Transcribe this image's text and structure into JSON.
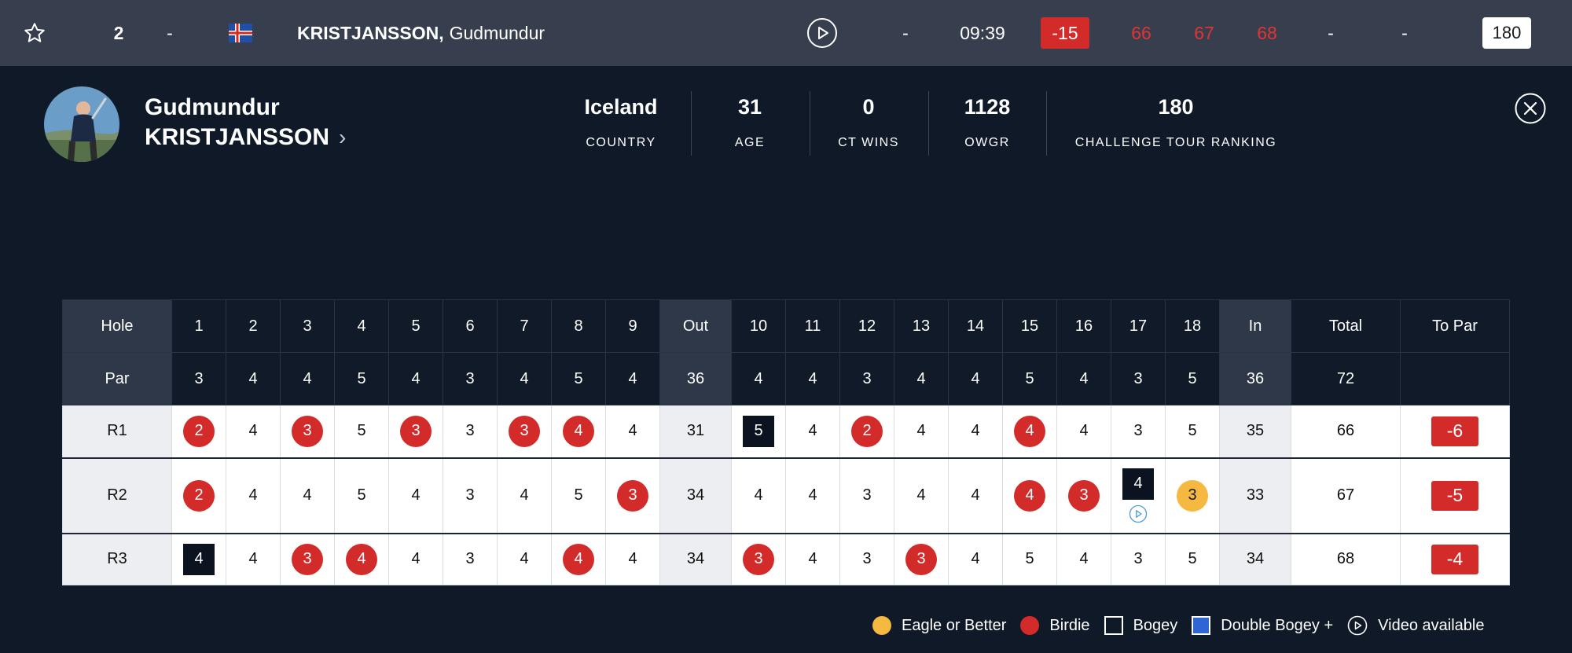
{
  "topbar": {
    "position": "2",
    "position_move": "-",
    "flag_icon": "iceland-flag-icon",
    "player_last": "KRISTJANSSON,",
    "player_first": "Gudmundur",
    "thru": "-",
    "tee_time": "09:39",
    "to_par": "-15",
    "rounds": [
      "66",
      "67",
      "68"
    ],
    "round4": "-",
    "total": "-",
    "ranking": "180",
    "colors": {
      "bar": "#373f4e",
      "to_par_badge": "#d32a2a",
      "round_scores": "#e03535"
    }
  },
  "profile": {
    "first_name": "Gudmundur",
    "last_name": "KRISTJANSSON",
    "stats": [
      {
        "value": "Iceland",
        "label": "COUNTRY"
      },
      {
        "value": "31",
        "label": "AGE"
      },
      {
        "value": "0",
        "label": "CT WINS"
      },
      {
        "value": "1128",
        "label": "OWGR"
      },
      {
        "value": "180",
        "label": "CHALLENGE TOUR RANKING"
      }
    ]
  },
  "scorecard": {
    "headers": [
      "Hole",
      "1",
      "2",
      "3",
      "4",
      "5",
      "6",
      "7",
      "8",
      "9",
      "Out",
      "10",
      "11",
      "12",
      "13",
      "14",
      "15",
      "16",
      "17",
      "18",
      "In",
      "Total",
      "To Par"
    ],
    "par": [
      "Par",
      "3",
      "4",
      "4",
      "5",
      "4",
      "3",
      "4",
      "5",
      "4",
      "36",
      "4",
      "4",
      "3",
      "4",
      "4",
      "5",
      "4",
      "3",
      "5",
      "36",
      "72",
      ""
    ],
    "rounds": [
      {
        "label": "R1",
        "scores": [
          "2",
          "4",
          "3",
          "5",
          "3",
          "3",
          "3",
          "4",
          "4",
          "31",
          "5",
          "4",
          "2",
          "4",
          "4",
          "4",
          "4",
          "3",
          "5",
          "35",
          "66"
        ],
        "types": [
          "birdie",
          "",
          "birdie",
          "",
          "birdie",
          "",
          "birdie",
          "birdie",
          "",
          "",
          "bogey",
          "",
          "birdie",
          "",
          "",
          "birdie",
          "",
          "",
          "",
          "",
          ""
        ],
        "to_par": "-6"
      },
      {
        "label": "R2",
        "scores": [
          "2",
          "4",
          "4",
          "5",
          "4",
          "3",
          "4",
          "5",
          "3",
          "34",
          "4",
          "4",
          "3",
          "4",
          "4",
          "4",
          "3",
          "4",
          "3",
          "33",
          "67"
        ],
        "types": [
          "birdie",
          "",
          "",
          "",
          "",
          "",
          "",
          "",
          "birdie",
          "",
          "",
          "",
          "",
          "",
          "",
          "birdie",
          "birdie",
          "bogey",
          "eagle",
          "",
          ""
        ],
        "video_hole_index": 18,
        "to_par": "-5"
      },
      {
        "label": "R3",
        "scores": [
          "4",
          "4",
          "3",
          "4",
          "4",
          "3",
          "4",
          "4",
          "4",
          "34",
          "3",
          "4",
          "3",
          "3",
          "4",
          "5",
          "4",
          "3",
          "5",
          "34",
          "68"
        ],
        "types": [
          "bogey",
          "",
          "birdie",
          "birdie",
          "",
          "",
          "",
          "birdie",
          "",
          "",
          "birdie",
          "",
          "",
          "birdie",
          "",
          "",
          "",
          "",
          "",
          "",
          ""
        ],
        "to_par": "-4"
      }
    ],
    "colors": {
      "birdie": "#d32a2a",
      "eagle": "#f5b942",
      "bogey": "#0b1220",
      "double_bogey": "#2f65d6"
    }
  },
  "legend": {
    "eagle": "Eagle or Better",
    "birdie": "Birdie",
    "bogey": "Bogey",
    "double_bogey": "Double Bogey +",
    "video": "Video available"
  },
  "icons": {
    "star": "star-icon",
    "play": "play-icon",
    "close": "close-icon",
    "chevron": "chevron-right-icon"
  }
}
